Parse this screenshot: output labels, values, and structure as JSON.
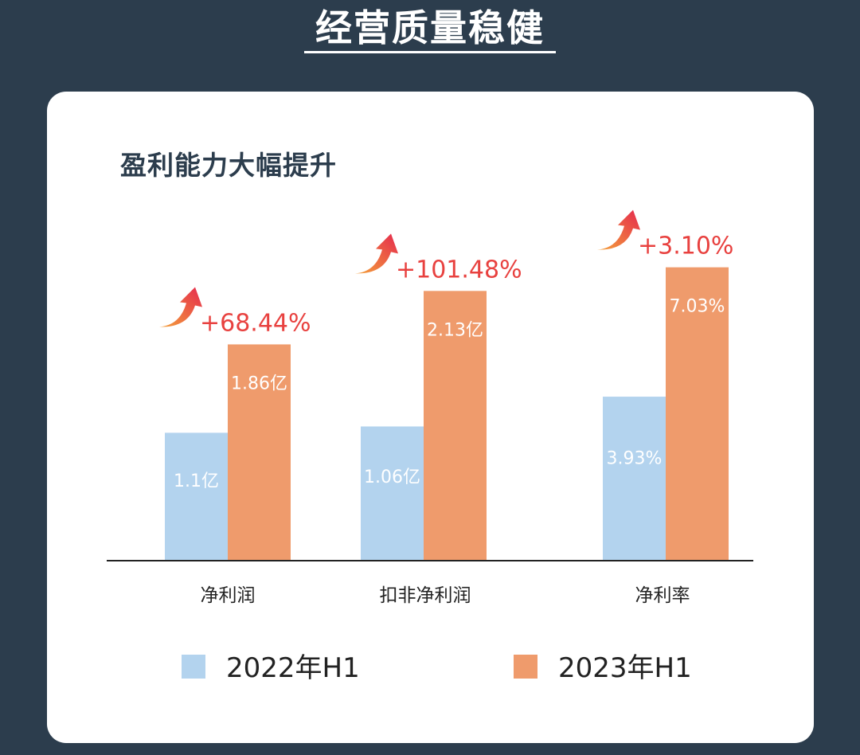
{
  "header": {
    "title": "经营质量稳健"
  },
  "colors": {
    "series_2022": "#b3d3ee",
    "series_2023": "#ef9b6c",
    "growth": "#e8413f",
    "background": "#2c3d4d"
  },
  "chart_data": {
    "type": "bar",
    "title": "盈利能力大幅提升",
    "xlabel": "",
    "ylabel": "",
    "grid": false,
    "legend_position": "bottom",
    "categories": [
      "净利润",
      "扣非净利润",
      "净利率"
    ],
    "series": [
      {
        "name": "2022年H1",
        "values": [
          1.1,
          1.06,
          3.93
        ],
        "labels": [
          "1.1亿",
          "1.06亿",
          "3.93%"
        ]
      },
      {
        "name": "2023年H1",
        "values": [
          1.86,
          2.13,
          7.03
        ],
        "labels": [
          "1.86亿",
          "2.13亿",
          "7.03%"
        ]
      }
    ],
    "growth_labels": [
      "+68.44%",
      "+101.48%",
      "+3.10%"
    ]
  }
}
